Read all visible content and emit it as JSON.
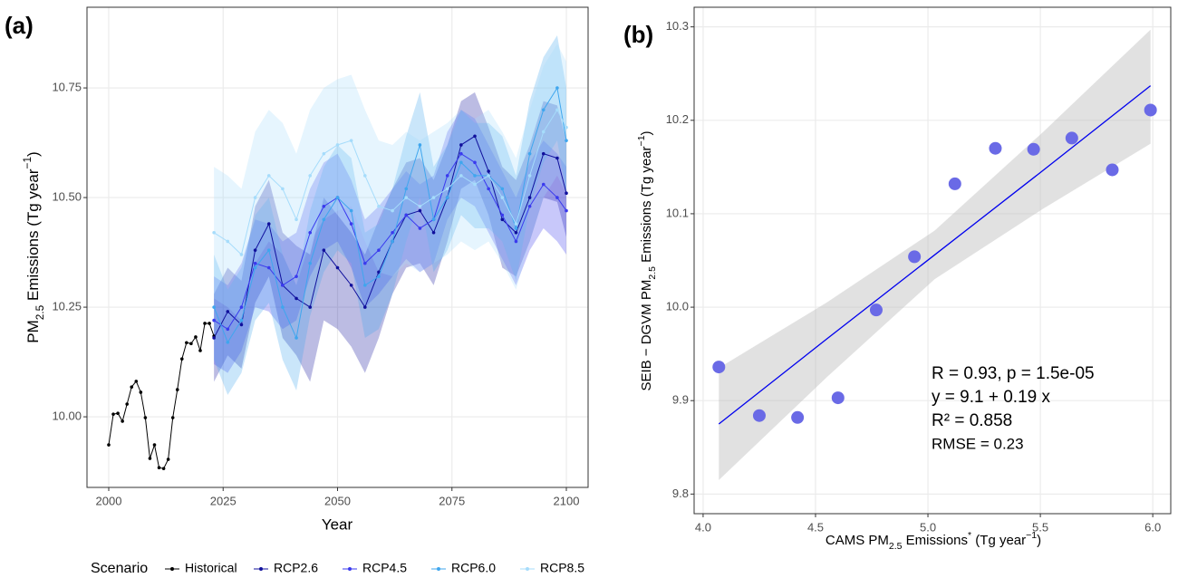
{
  "chart_data": [
    {
      "type": "line",
      "panel_label": "(a)",
      "xlabel": "Year",
      "ylabel": [
        "PM",
        "2.5",
        " Emissions (Tg year",
        "−1",
        ")"
      ],
      "xlim": [
        1995.25,
        2104.75
      ],
      "ylim": [
        9.839,
        10.934
      ],
      "xticks": [
        2000,
        2025,
        2050,
        2075,
        2100
      ],
      "yticks": [
        {
          "value": 10,
          "label": "10.00"
        },
        10.25,
        {
          "value": 10.5,
          "label": "10.50"
        },
        10.75
      ],
      "grid": true,
      "legend": "bottom",
      "legend_title": "Scenario",
      "series": [
        {
          "name": "Historical",
          "color": "#000000",
          "x": [
            2000,
            2001,
            2002,
            2003,
            2004,
            2005,
            2006,
            2007,
            2008,
            2009,
            2010,
            2011,
            2012,
            2013,
            2014,
            2015,
            2016,
            2017,
            2018,
            2019,
            2020,
            2021,
            2022,
            2023
          ],
          "values": [
            9.936,
            10.006,
            10.008,
            9.99,
            10.029,
            10.068,
            10.081,
            10.056,
            9.998,
            9.905,
            9.936,
            9.884,
            9.882,
            9.903,
            9.998,
            10.062,
            10.132,
            10.169,
            10.167,
            10.182,
            10.151,
            10.213,
            10.213,
            10.184
          ]
        },
        {
          "name": "RCP2.6",
          "color": "#10109c",
          "x": [
            2023,
            2026,
            2029,
            2032,
            2035,
            2038,
            2041,
            2044,
            2047,
            2050,
            2053,
            2056,
            2059,
            2062,
            2065,
            2068,
            2071,
            2074,
            2077,
            2080,
            2083,
            2086,
            2089,
            2092,
            2095,
            2098,
            2100
          ],
          "values": [
            10.18,
            10.24,
            10.21,
            10.38,
            10.44,
            10.3,
            10.27,
            10.25,
            10.38,
            10.34,
            10.3,
            10.25,
            10.33,
            10.4,
            10.46,
            10.47,
            10.42,
            10.5,
            10.62,
            10.64,
            10.56,
            10.45,
            10.42,
            10.5,
            10.6,
            10.59,
            10.51
          ],
          "lower": [
            10.08,
            10.14,
            10.11,
            10.26,
            10.32,
            10.18,
            10.14,
            10.08,
            10.22,
            10.2,
            10.16,
            10.1,
            10.18,
            10.28,
            10.34,
            10.35,
            10.3,
            10.4,
            10.52,
            10.54,
            10.46,
            10.34,
            10.32,
            10.4,
            10.5,
            10.49,
            10.41
          ],
          "upper": [
            10.28,
            10.34,
            10.31,
            10.48,
            10.54,
            10.42,
            10.39,
            10.37,
            10.5,
            10.46,
            10.42,
            10.37,
            10.45,
            10.52,
            10.58,
            10.59,
            10.54,
            10.62,
            10.72,
            10.74,
            10.66,
            10.57,
            10.54,
            10.62,
            10.72,
            10.71,
            10.63
          ]
        },
        {
          "name": "RCP4.5",
          "color": "#3a3aee",
          "x": [
            2023,
            2026,
            2029,
            2032,
            2035,
            2038,
            2041,
            2044,
            2047,
            2050,
            2053,
            2056,
            2059,
            2062,
            2065,
            2068,
            2071,
            2074,
            2077,
            2080,
            2083,
            2086,
            2089,
            2092,
            2095,
            2098,
            2100
          ],
          "values": [
            10.22,
            10.2,
            10.25,
            10.35,
            10.34,
            10.3,
            10.32,
            10.42,
            10.48,
            10.5,
            10.44,
            10.35,
            10.38,
            10.42,
            10.46,
            10.43,
            10.45,
            10.55,
            10.6,
            10.58,
            10.52,
            10.46,
            10.4,
            10.48,
            10.53,
            10.5,
            10.47
          ],
          "lower": [
            10.12,
            10.1,
            10.15,
            10.25,
            10.24,
            10.2,
            10.22,
            10.32,
            10.38,
            10.4,
            10.34,
            10.25,
            10.28,
            10.32,
            10.36,
            10.33,
            10.35,
            10.45,
            10.5,
            10.48,
            10.42,
            10.36,
            10.3,
            10.38,
            10.43,
            10.4,
            10.37
          ],
          "upper": [
            10.32,
            10.3,
            10.35,
            10.45,
            10.44,
            10.4,
            10.42,
            10.52,
            10.58,
            10.6,
            10.54,
            10.45,
            10.48,
            10.52,
            10.56,
            10.53,
            10.55,
            10.65,
            10.7,
            10.68,
            10.62,
            10.56,
            10.5,
            10.58,
            10.63,
            10.6,
            10.57
          ]
        },
        {
          "name": "RCP6.0",
          "color": "#3fa6ee",
          "x": [
            2023,
            2026,
            2029,
            2032,
            2035,
            2038,
            2041,
            2044,
            2047,
            2050,
            2053,
            2056,
            2059,
            2062,
            2065,
            2068,
            2071,
            2074,
            2077,
            2080,
            2083,
            2086,
            2089,
            2092,
            2095,
            2098,
            2100
          ],
          "values": [
            10.25,
            10.17,
            10.22,
            10.34,
            10.38,
            10.25,
            10.18,
            10.35,
            10.45,
            10.5,
            10.47,
            10.3,
            10.32,
            10.4,
            10.52,
            10.62,
            10.45,
            10.5,
            10.58,
            10.55,
            10.55,
            10.52,
            10.43,
            10.6,
            10.7,
            10.75,
            10.63
          ],
          "lower": [
            10.13,
            10.05,
            10.1,
            10.22,
            10.26,
            10.13,
            10.06,
            10.23,
            10.33,
            10.38,
            10.35,
            10.18,
            10.2,
            10.28,
            10.4,
            10.5,
            10.33,
            10.38,
            10.46,
            10.43,
            10.43,
            10.4,
            10.31,
            10.48,
            10.58,
            10.63,
            10.51
          ],
          "upper": [
            10.37,
            10.29,
            10.34,
            10.46,
            10.5,
            10.37,
            10.3,
            10.47,
            10.57,
            10.62,
            10.59,
            10.42,
            10.44,
            10.52,
            10.64,
            10.74,
            10.57,
            10.62,
            10.7,
            10.67,
            10.67,
            10.64,
            10.55,
            10.72,
            10.82,
            10.87,
            10.75
          ]
        },
        {
          "name": "RCP8.5",
          "color": "#a6dcfb",
          "x": [
            2023,
            2026,
            2029,
            2032,
            2035,
            2038,
            2041,
            2044,
            2047,
            2050,
            2053,
            2056,
            2059,
            2062,
            2065,
            2068,
            2071,
            2074,
            2077,
            2080,
            2083,
            2086,
            2089,
            2092,
            2095,
            2098,
            2100
          ],
          "values": [
            10.42,
            10.4,
            10.37,
            10.5,
            10.55,
            10.52,
            10.45,
            10.55,
            10.6,
            10.62,
            10.63,
            10.55,
            10.48,
            10.47,
            10.5,
            10.48,
            10.5,
            10.52,
            10.55,
            10.53,
            10.55,
            10.5,
            10.44,
            10.55,
            10.65,
            10.7,
            10.66
          ],
          "lower": [
            10.27,
            10.25,
            10.22,
            10.35,
            10.4,
            10.37,
            10.3,
            10.4,
            10.45,
            10.47,
            10.48,
            10.4,
            10.33,
            10.32,
            10.35,
            10.33,
            10.35,
            10.37,
            10.4,
            10.38,
            10.4,
            10.35,
            10.29,
            10.4,
            10.5,
            10.55,
            10.51
          ],
          "upper": [
            10.57,
            10.55,
            10.52,
            10.65,
            10.7,
            10.67,
            10.6,
            10.7,
            10.75,
            10.77,
            10.78,
            10.7,
            10.63,
            10.62,
            10.65,
            10.63,
            10.65,
            10.67,
            10.7,
            10.68,
            10.7,
            10.65,
            10.59,
            10.7,
            10.8,
            10.85,
            10.81
          ]
        }
      ]
    },
    {
      "type": "scatter",
      "panel_label": "(b)",
      "xlabel": [
        "CAMS PM",
        "2.5",
        " Emissions",
        "*",
        " (Tg year",
        "−1",
        ")"
      ],
      "ylabel": [
        "SEIB − DGVM PM",
        "2.5",
        " Emissions (Tg year",
        "−1",
        ")"
      ],
      "xlim": [
        3.96,
        6.08
      ],
      "ylim": [
        9.779,
        10.321
      ],
      "xticks": [
        {
          "value": 4,
          "label": "4.0"
        },
        4.5,
        {
          "value": 5,
          "label": "5.0"
        },
        5.5,
        {
          "value": 6,
          "label": "6.0"
        }
      ],
      "yticks": [
        9.8,
        9.9,
        {
          "value": 10,
          "label": "10.0"
        },
        10.1,
        10.2,
        10.3
      ],
      "grid": true,
      "color": "#6a6ae6",
      "x": [
        4.07,
        4.25,
        4.42,
        4.6,
        4.77,
        4.94,
        5.12,
        5.3,
        5.47,
        5.64,
        5.82,
        5.99
      ],
      "values": [
        9.936,
        9.884,
        9.882,
        9.903,
        9.997,
        10.054,
        10.132,
        10.17,
        10.169,
        10.181,
        10.147,
        10.211
      ],
      "fit": {
        "color": "#0000ee",
        "x": [
          4.07,
          4.55,
          5.03,
          5.51,
          5.99
        ],
        "values": [
          9.875,
          9.966,
          10.056,
          10.146,
          10.237
        ],
        "lower": [
          9.815,
          9.925,
          10.03,
          10.105,
          10.175
        ],
        "upper": [
          9.935,
          10.005,
          10.082,
          10.187,
          10.297
        ]
      },
      "annotations": [
        "R = 0.93, p = 1.5e-05",
        "y = 9.1 + 0.19 x",
        "R² = 0.858",
        "RMSE = 0.23"
      ]
    }
  ]
}
